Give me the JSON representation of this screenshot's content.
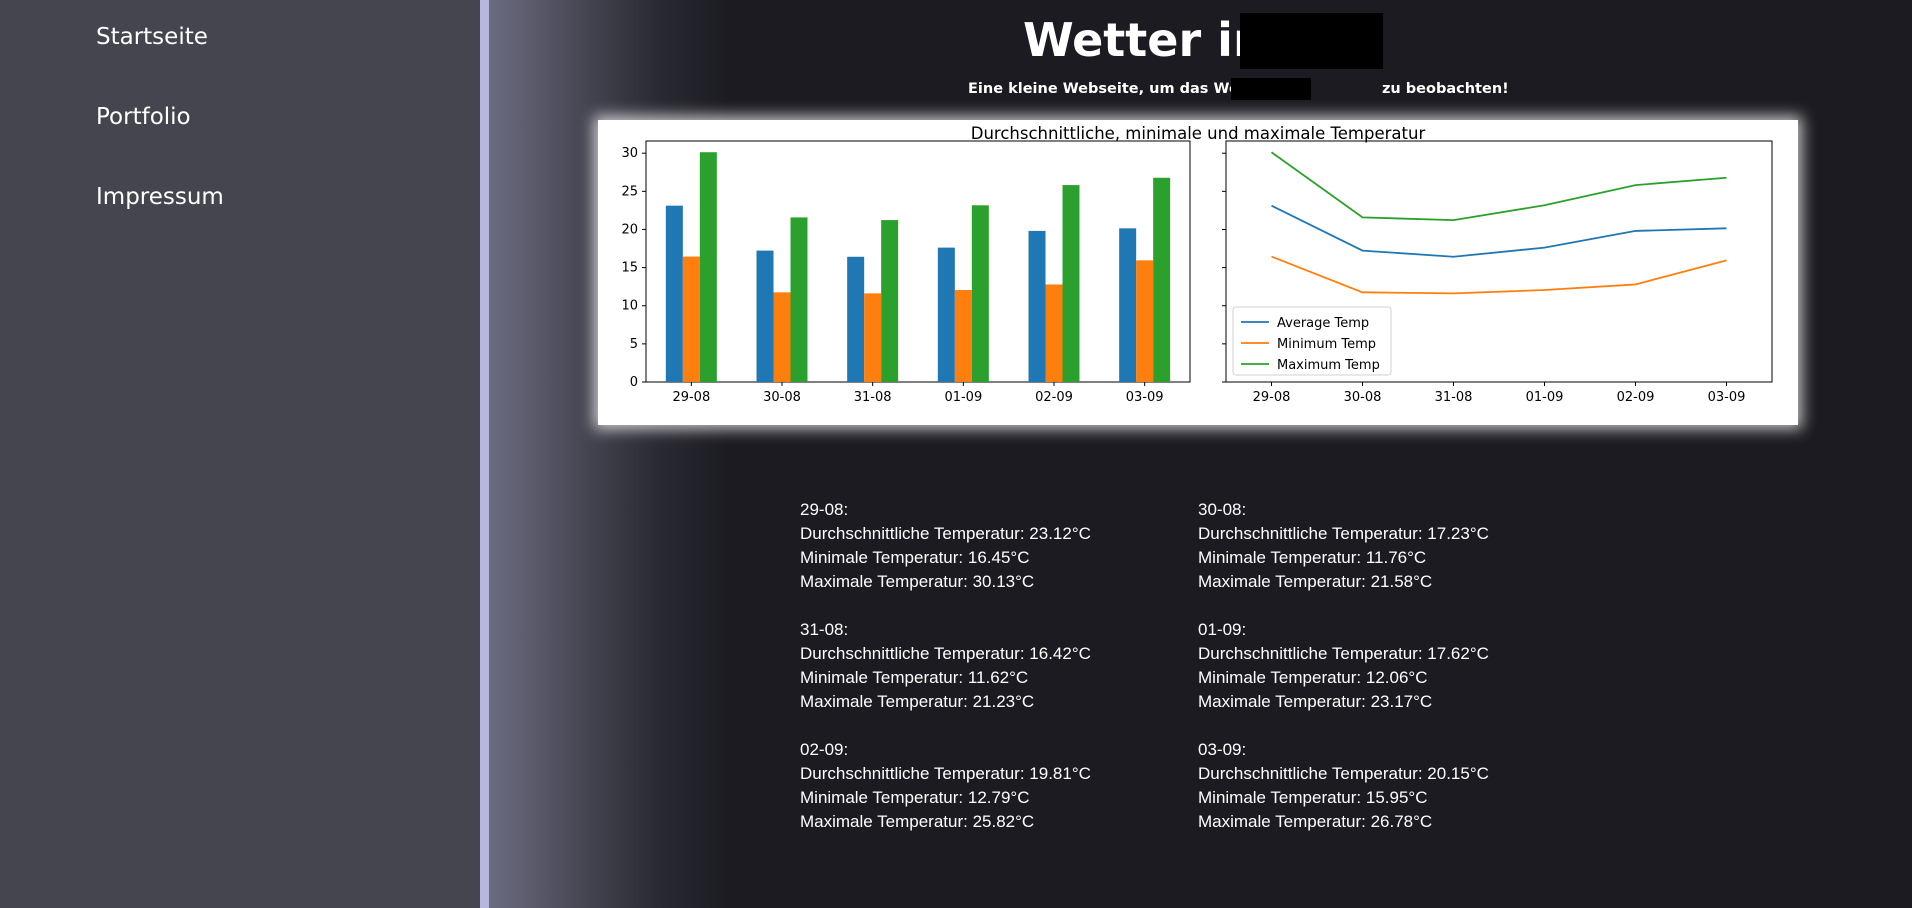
{
  "nav": {
    "items": [
      {
        "label": "Startseite"
      },
      {
        "label": "Portfolio"
      },
      {
        "label": "Impressum"
      }
    ]
  },
  "header": {
    "title": "Wetter in",
    "subtitle_before": "Eine kleine Webseite, um das Wetter in",
    "subtitle_after": "zu beobachten!"
  },
  "chart_data": {
    "type": "bar",
    "title": "Durchschnittliche, minimale und maximale Temperatur",
    "categories": [
      "29-08",
      "30-08",
      "31-08",
      "01-09",
      "02-09",
      "03-09"
    ],
    "series": [
      {
        "name": "Average Temp",
        "color": "#1f77b4",
        "values": [
          23.12,
          17.23,
          16.42,
          17.62,
          19.81,
          20.15
        ]
      },
      {
        "name": "Minimum Temp",
        "color": "#ff7f0e",
        "values": [
          16.45,
          11.76,
          11.62,
          12.06,
          12.79,
          15.95
        ]
      },
      {
        "name": "Maximum Temp",
        "color": "#2ca02c",
        "values": [
          30.13,
          21.58,
          21.23,
          23.17,
          25.82,
          26.78
        ]
      }
    ],
    "yticks": [
      "0",
      "5",
      "10",
      "15",
      "20",
      "25",
      "30"
    ],
    "ylim": [
      0,
      31.6
    ],
    "legend": "lower-left (line chart)",
    "grid": false
  },
  "days": {
    "labels": {
      "avg": "Durchschnittliche Temperatur:",
      "min": "Minimale Temperatur:",
      "max": "Maximale Temperatur:"
    },
    "items": [
      {
        "date": "29-08:",
        "avg": "23.12°C",
        "min": "16.45°C",
        "max": "30.13°C"
      },
      {
        "date": "30-08:",
        "avg": "17.23°C",
        "min": "11.76°C",
        "max": "21.58°C"
      },
      {
        "date": "31-08:",
        "avg": "16.42°C",
        "min": "11.62°C",
        "max": "21.23°C"
      },
      {
        "date": "01-09:",
        "avg": "17.62°C",
        "min": "12.06°C",
        "max": "23.17°C"
      },
      {
        "date": "02-09:",
        "avg": "19.81°C",
        "min": "12.79°C",
        "max": "25.82°C"
      },
      {
        "date": "03-09:",
        "avg": "20.15°C",
        "min": "15.95°C",
        "max": "26.78°C"
      }
    ]
  }
}
